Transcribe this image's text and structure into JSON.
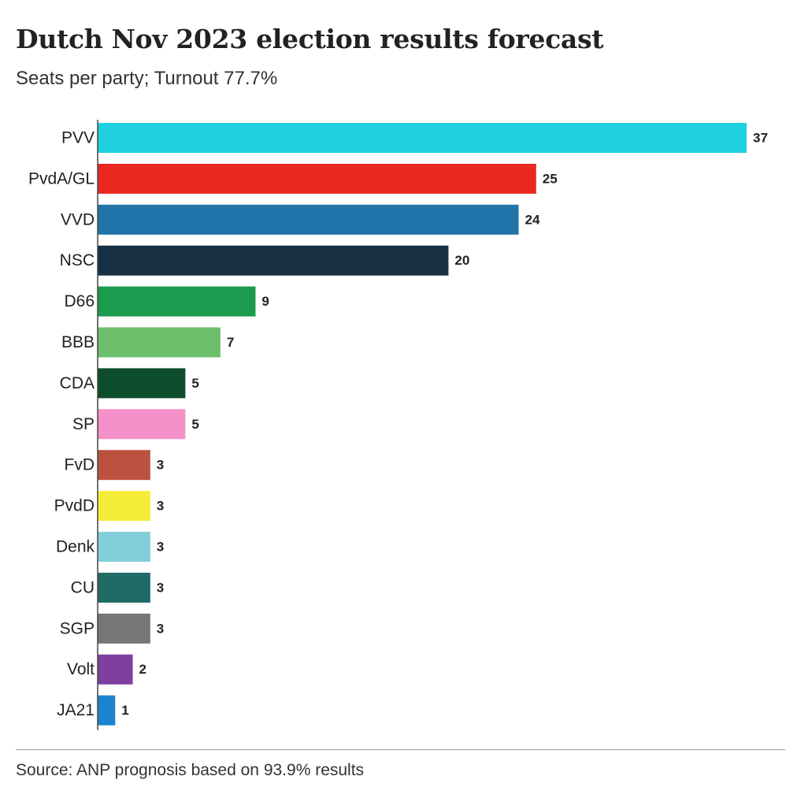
{
  "chart_data": {
    "type": "bar",
    "orientation": "horizontal",
    "title": "Dutch Nov 2023 election results forecast",
    "subtitle": "Seats per party; Turnout 77.7%",
    "source": "Source: ANP prognosis based on 93.9% results",
    "categories": [
      "PVV",
      "PvdA/GL",
      "VVD",
      "NSC",
      "D66",
      "BBB",
      "CDA",
      "SP",
      "FvD",
      "PvdD",
      "Denk",
      "CU",
      "SGP",
      "Volt",
      "JA21"
    ],
    "values": [
      37,
      25,
      24,
      20,
      9,
      7,
      5,
      5,
      3,
      3,
      3,
      3,
      3,
      2,
      1
    ],
    "colors": [
      "#1fd1e0",
      "#e9281f",
      "#2174a9",
      "#162f43",
      "#1c9a4e",
      "#6cbf6a",
      "#0e4d2c",
      "#f491c8",
      "#bd5140",
      "#f4ec37",
      "#82cfd9",
      "#1f6b65",
      "#767676",
      "#7f3fa1",
      "#1d82cf"
    ],
    "xlim": [
      0,
      37
    ],
    "grid": false,
    "legend": "none"
  }
}
